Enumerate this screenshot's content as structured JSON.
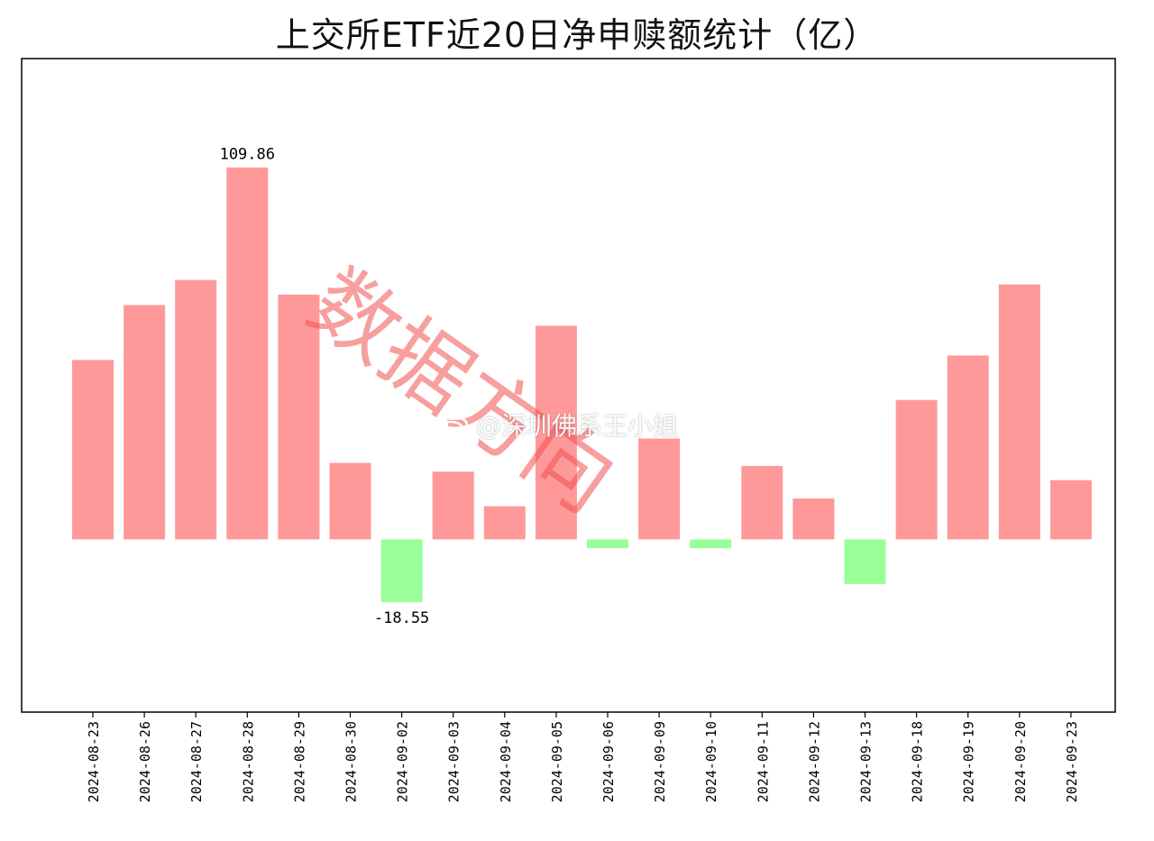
{
  "chart_data": {
    "type": "bar",
    "title": "上交所ETF近20日净申赎额统计（亿）",
    "categories": [
      "2024-08-23",
      "2024-08-26",
      "2024-08-27",
      "2024-08-28",
      "2024-08-29",
      "2024-08-30",
      "2024-09-02",
      "2024-09-03",
      "2024-09-04",
      "2024-09-05",
      "2024-09-06",
      "2024-09-09",
      "2024-09-10",
      "2024-09-11",
      "2024-09-12",
      "2024-09-13",
      "2024-09-18",
      "2024-09-19",
      "2024-09-20",
      "2024-09-23"
    ],
    "values": [
      53.0,
      69.2,
      76.6,
      109.86,
      72.3,
      22.6,
      -18.55,
      20.0,
      9.8,
      63.1,
      -2.6,
      29.8,
      -2.6,
      21.7,
      12.1,
      -13.2,
      41.2,
      54.3,
      75.3,
      17.5
    ],
    "data_labels": [
      {
        "index": 3,
        "text": "109.86"
      },
      {
        "index": 6,
        "text": "-18.55"
      }
    ],
    "ylim": [
      -51.0,
      142.0
    ],
    "positive_color": "#ff9999",
    "negative_color": "#99ff99",
    "grid": false,
    "xlabel": "",
    "ylabel": ""
  },
  "watermark": {
    "text": "数据方向",
    "weibo_handle": "@深圳佛系王小姐",
    "weibo_icon": "weibo-logo-icon"
  }
}
